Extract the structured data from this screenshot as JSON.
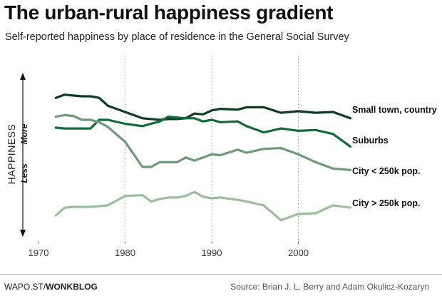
{
  "title": "The urban-rural happiness gradient",
  "subtitle": "Self-reported happiness by place of residence in the General Social Survey",
  "footer": {
    "site": "WAPO.ST/",
    "section": "WONKBLOG",
    "source": "Source: Brian J. L. Berry and Adam Okulicz-Kozaryn"
  },
  "chart_data": {
    "type": "line",
    "xlabel": "",
    "ylabel": "HAPPINESS",
    "ylabel_more": "More",
    "ylabel_less": "Less",
    "xlim": [
      1968,
      2011
    ],
    "x_ticks": [
      1970,
      1980,
      1990,
      2000
    ],
    "grid": "dotted vertical lines at 1980, 1990, 2000",
    "legend": "direct labels at line ends",
    "series": [
      {
        "name": "Small town, country",
        "color": "#0e3b21",
        "points": [
          [
            1972,
            0.84
          ],
          [
            1973,
            0.86
          ],
          [
            1974,
            0.855
          ],
          [
            1975,
            0.85
          ],
          [
            1976,
            0.85
          ],
          [
            1977,
            0.84
          ],
          [
            1978,
            0.79
          ],
          [
            1980,
            0.75
          ],
          [
            1982,
            0.71
          ],
          [
            1984,
            0.7
          ],
          [
            1985,
            0.705
          ],
          [
            1986,
            0.705
          ],
          [
            1987,
            0.71
          ],
          [
            1988,
            0.74
          ],
          [
            1989,
            0.735
          ],
          [
            1990,
            0.76
          ],
          [
            1991,
            0.77
          ],
          [
            1993,
            0.765
          ],
          [
            1994,
            0.78
          ],
          [
            1996,
            0.78
          ],
          [
            1998,
            0.745
          ],
          [
            2000,
            0.755
          ],
          [
            2002,
            0.745
          ],
          [
            2004,
            0.75
          ],
          [
            2006,
            0.71
          ]
        ]
      },
      {
        "name": "Suburbs",
        "color": "#146b3a",
        "points": [
          [
            1972,
            0.65
          ],
          [
            1973,
            0.645
          ],
          [
            1974,
            0.645
          ],
          [
            1975,
            0.645
          ],
          [
            1976,
            0.645
          ],
          [
            1977,
            0.7
          ],
          [
            1978,
            0.7
          ],
          [
            1980,
            0.675
          ],
          [
            1982,
            0.66
          ],
          [
            1984,
            0.69
          ],
          [
            1985,
            0.72
          ],
          [
            1986,
            0.715
          ],
          [
            1987,
            0.71
          ],
          [
            1988,
            0.71
          ],
          [
            1989,
            0.69
          ],
          [
            1990,
            0.7
          ],
          [
            1991,
            0.685
          ],
          [
            1993,
            0.69
          ],
          [
            1994,
            0.66
          ],
          [
            1996,
            0.62
          ],
          [
            1998,
            0.645
          ],
          [
            2000,
            0.63
          ],
          [
            2002,
            0.635
          ],
          [
            2004,
            0.61
          ],
          [
            2006,
            0.53
          ]
        ]
      },
      {
        "name": "City < 250k pop.",
        "color": "#6e9a7a",
        "points": [
          [
            1972,
            0.72
          ],
          [
            1973,
            0.73
          ],
          [
            1974,
            0.725
          ],
          [
            1975,
            0.7
          ],
          [
            1976,
            0.7
          ],
          [
            1977,
            0.685
          ],
          [
            1978,
            0.655
          ],
          [
            1980,
            0.56
          ],
          [
            1982,
            0.4
          ],
          [
            1983,
            0.4
          ],
          [
            1984,
            0.43
          ],
          [
            1985,
            0.43
          ],
          [
            1986,
            0.43
          ],
          [
            1987,
            0.46
          ],
          [
            1988,
            0.44
          ],
          [
            1989,
            0.46
          ],
          [
            1990,
            0.48
          ],
          [
            1991,
            0.475
          ],
          [
            1993,
            0.51
          ],
          [
            1994,
            0.49
          ],
          [
            1996,
            0.515
          ],
          [
            1998,
            0.52
          ],
          [
            2000,
            0.48
          ],
          [
            2002,
            0.43
          ],
          [
            2004,
            0.39
          ],
          [
            2006,
            0.38
          ]
        ]
      },
      {
        "name": "City > 250k pop.",
        "color": "#9cbe9c",
        "points": [
          [
            1972,
            0.09
          ],
          [
            1973,
            0.14
          ],
          [
            1974,
            0.145
          ],
          [
            1975,
            0.145
          ],
          [
            1976,
            0.145
          ],
          [
            1977,
            0.15
          ],
          [
            1978,
            0.155
          ],
          [
            1980,
            0.215
          ],
          [
            1982,
            0.22
          ],
          [
            1983,
            0.18
          ],
          [
            1984,
            0.195
          ],
          [
            1985,
            0.205
          ],
          [
            1986,
            0.205
          ],
          [
            1987,
            0.215
          ],
          [
            1988,
            0.24
          ],
          [
            1989,
            0.21
          ],
          [
            1990,
            0.2
          ],
          [
            1991,
            0.205
          ],
          [
            1993,
            0.19
          ],
          [
            1994,
            0.18
          ],
          [
            1996,
            0.155
          ],
          [
            1998,
            0.06
          ],
          [
            2000,
            0.1
          ],
          [
            2002,
            0.105
          ],
          [
            2004,
            0.155
          ],
          [
            2006,
            0.14
          ]
        ]
      }
    ]
  }
}
